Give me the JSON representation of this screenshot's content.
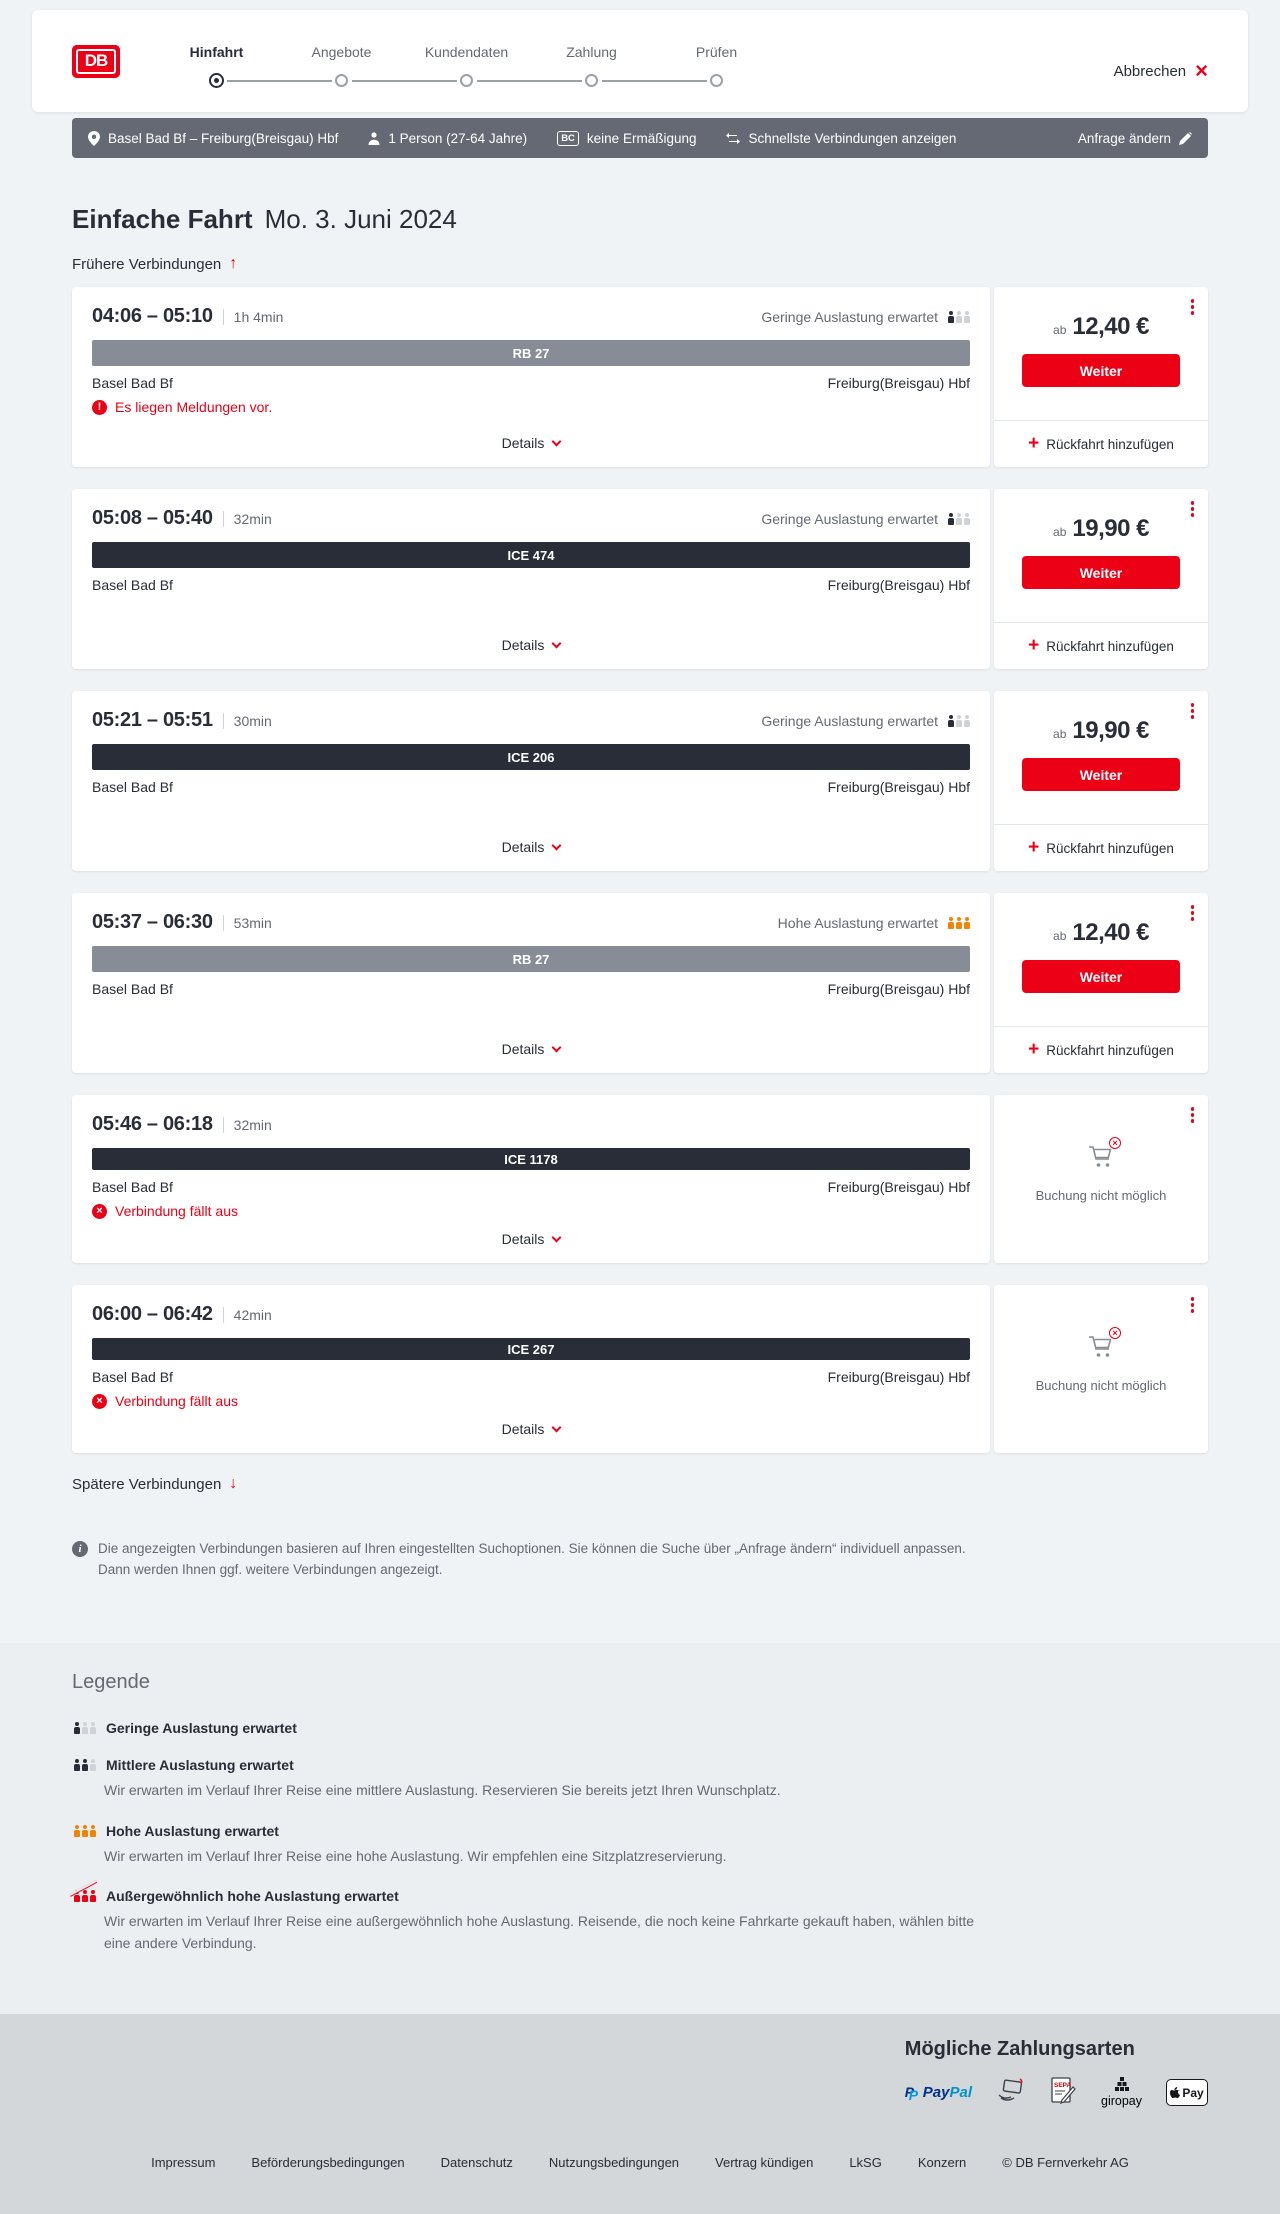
{
  "header": {
    "logo": "DB",
    "steps": [
      {
        "label": "Hinfahrt",
        "active": true
      },
      {
        "label": "Angebote",
        "active": false
      },
      {
        "label": "Kundendaten",
        "active": false
      },
      {
        "label": "Zahlung",
        "active": false
      },
      {
        "label": "Prüfen",
        "active": false
      }
    ],
    "cancel_label": "Abbrechen"
  },
  "search_bar": {
    "route": "Basel Bad Bf – Freiburg(Breisgau) Hbf",
    "passengers": "1 Person (27-64 Jahre)",
    "bahncard_badge": "BC",
    "discount": "keine Ermäßigung",
    "fastest": "Schnellste Verbindungen anzeigen",
    "modify": "Anfrage ändern"
  },
  "results": {
    "title_bold": "Einfache Fahrt",
    "title_date": "Mo. 3. Juni 2024",
    "earlier_label": "Frühere Verbindungen",
    "later_label": "Spätere Verbindungen",
    "details_label": "Details",
    "price_prefix": "ab",
    "continue_label": "Weiter",
    "add_return_label": "Rückfahrt hinzufügen",
    "booking_not_possible_label": "Buchung nicht möglich",
    "connections": [
      {
        "depart": "04:06",
        "arrive": "05:10",
        "duration": "1h 4min",
        "train": "RB 27",
        "train_type": "rb",
        "from": "Basel Bad Bf",
        "to": "Freiburg(Breisgau) Hbf",
        "occupancy": "Geringe Auslastung erwartet",
        "occupancy_level": "low",
        "warning": "Es liegen Meldungen vor.",
        "warning_icon": "!",
        "price": "12,40 €",
        "bookable": true
      },
      {
        "depart": "05:08",
        "arrive": "05:40",
        "duration": "32min",
        "train": "ICE 474",
        "train_type": "ice",
        "from": "Basel Bad Bf",
        "to": "Freiburg(Breisgau) Hbf",
        "occupancy": "Geringe Auslastung erwartet",
        "occupancy_level": "low",
        "warning": null,
        "warning_icon": null,
        "price": "19,90 €",
        "bookable": true
      },
      {
        "depart": "05:21",
        "arrive": "05:51",
        "duration": "30min",
        "train": "ICE 206",
        "train_type": "ice",
        "from": "Basel Bad Bf",
        "to": "Freiburg(Breisgau) Hbf",
        "occupancy": "Geringe Auslastung erwartet",
        "occupancy_level": "low",
        "warning": null,
        "warning_icon": null,
        "price": "19,90 €",
        "bookable": true
      },
      {
        "depart": "05:37",
        "arrive": "06:30",
        "duration": "53min",
        "train": "RB 27",
        "train_type": "rb",
        "from": "Basel Bad Bf",
        "to": "Freiburg(Breisgau) Hbf",
        "occupancy": "Hohe Auslastung erwartet",
        "occupancy_level": "high",
        "warning": null,
        "warning_icon": null,
        "price": "12,40 €",
        "bookable": true
      },
      {
        "depart": "05:46",
        "arrive": "06:18",
        "duration": "32min",
        "train": "ICE 1178",
        "train_type": "ice",
        "from": "Basel Bad Bf",
        "to": "Freiburg(Breisgau) Hbf",
        "occupancy": null,
        "occupancy_level": null,
        "warning": "Verbindung fällt aus",
        "warning_icon": "x",
        "price": null,
        "bookable": false
      },
      {
        "depart": "06:00",
        "arrive": "06:42",
        "duration": "42min",
        "train": "ICE 267",
        "train_type": "ice",
        "from": "Basel Bad Bf",
        "to": "Freiburg(Breisgau) Hbf",
        "occupancy": null,
        "occupancy_level": null,
        "warning": "Verbindung fällt aus",
        "warning_icon": "x",
        "price": null,
        "bookable": false
      }
    ],
    "note": "Die angezeigten Verbindungen basieren auf Ihren eingestellten Suchoptionen. Sie können die Suche über „Anfrage ändern“ individuell anpassen. Dann werden Ihnen ggf. weitere Verbindungen angezeigt."
  },
  "legend": {
    "title": "Legende",
    "items": [
      {
        "level": "low",
        "label": "Geringe Auslastung erwartet",
        "description": null
      },
      {
        "level": "medium",
        "label": "Mittlere Auslastung erwartet",
        "description": "Wir erwarten im Verlauf Ihrer Reise eine mittlere Auslastung. Reservieren Sie bereits jetzt Ihren Wunschplatz."
      },
      {
        "level": "high",
        "label": "Hohe Auslastung erwartet",
        "description": "Wir erwarten im Verlauf Ihrer Reise eine hohe Auslastung. Wir empfehlen eine Sitzplatzreservierung."
      },
      {
        "level": "very-high",
        "label": "Außergewöhnlich hohe Auslastung erwartet",
        "description": "Wir erwarten im Verlauf Ihrer Reise eine außergewöhnlich hohe Auslastung. Reisende, die noch keine Fahrkarte gekauft haben, wählen bitte eine andere Verbindung."
      }
    ]
  },
  "payment": {
    "title": "Mögliche Zahlungsarten",
    "methods": [
      "PayPal",
      "Kreditkarte",
      "SEPA-Lastschrift",
      "giropay",
      "Apple Pay"
    ],
    "paypal_pay": "Pay",
    "paypal_pal": "Pal",
    "giropay_label": "giropay",
    "applepay_label": "Pay"
  },
  "footer": {
    "links": [
      "Impressum",
      "Beförderungsbedingungen",
      "Datenschutz",
      "Nutzungsbedingungen",
      "Vertrag kündigen",
      "LkSG",
      "Konzern"
    ],
    "copyright": "© DB Fernverkehr AG"
  },
  "colors": {
    "brand_red": "#ec0016",
    "dark_navy": "#282d37",
    "text_gray": "#646973",
    "bar_gray": "#878c96",
    "occupancy_orange": "#f08406",
    "page_bg": "#f0f3f6",
    "legend_bg": "#eceff1",
    "bottom_bg": "#d3d7da"
  }
}
